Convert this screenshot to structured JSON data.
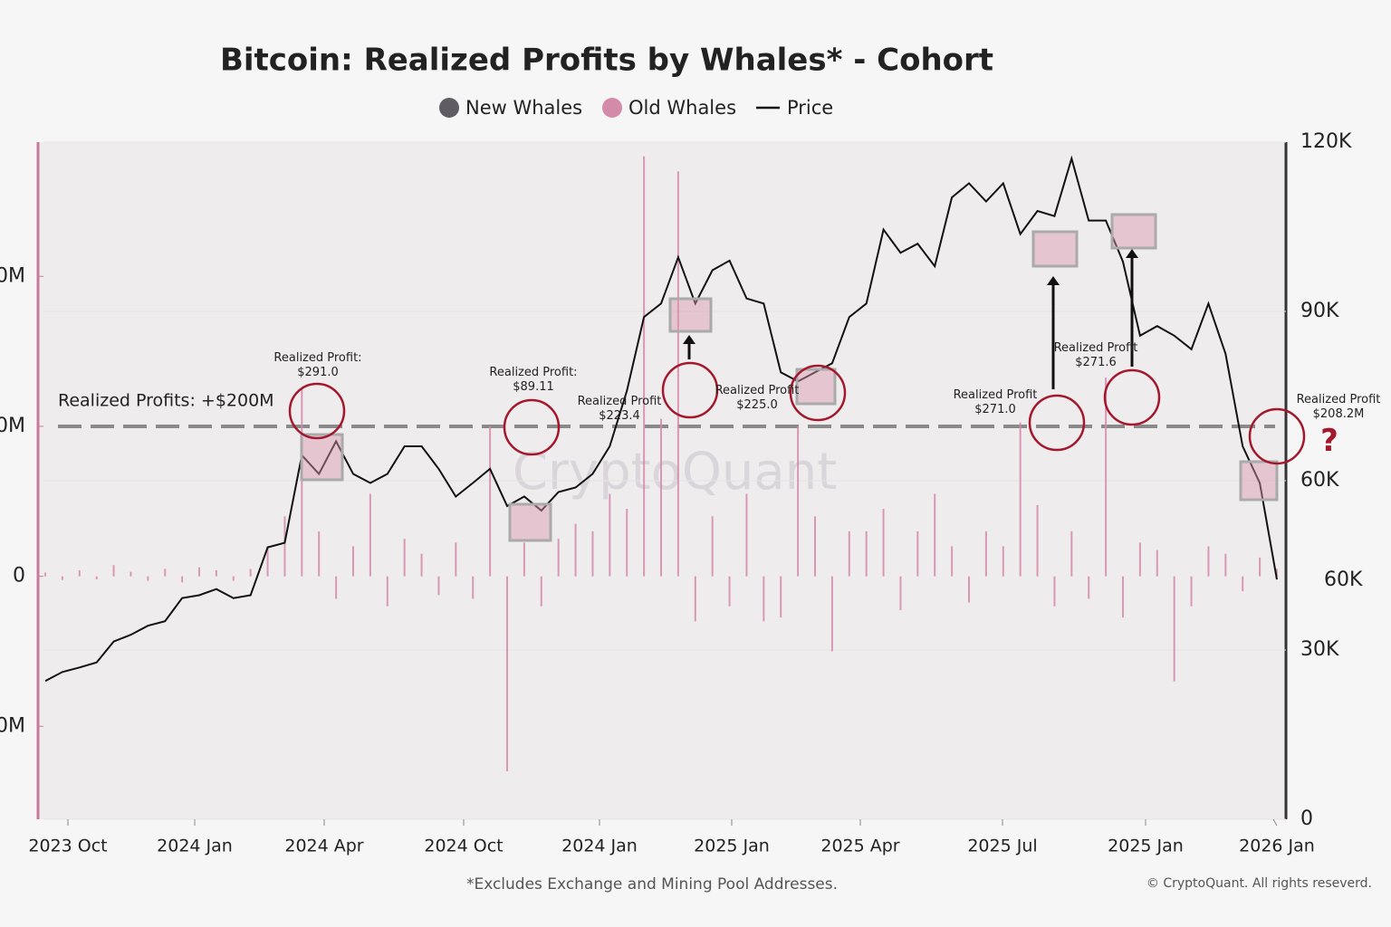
{
  "chart_data": {
    "type": "bar-line",
    "title": "Bitcoin: Realized Profits by Whales* - Cohort",
    "footnote": "*Excludes Exchange and Mining Pool Addresses.",
    "copyright": "© CryptoQuant. All rights reseverd.",
    "watermark": "CryptoQuant",
    "x_labels": [
      "2023 Oct",
      "2024 Jan",
      "2024 Apr",
      "2024 Oct",
      "2024 Jan",
      "2025 Jan",
      "2025 Apr",
      "2025 Jul",
      "2025 Jan",
      "2026 Jan"
    ],
    "ylim": [
      -324,
      579
    ],
    "yticks": [
      {
        "value": 400,
        "label": "0M"
      },
      {
        "value": 200,
        "label": "0M"
      },
      0,
      {
        "value": -200,
        "label": "0M"
      }
    ],
    "y2lim": [
      0,
      120000
    ],
    "y2ticks": [
      {
        "value": 120000,
        "label": "120K"
      },
      {
        "value": 90000,
        "label": "90K"
      },
      {
        "value": 60000,
        "label": "60K"
      },
      {
        "value": 30000,
        "label": "30K"
      },
      0
    ],
    "threshold": {
      "value": 200,
      "label": "Realized Profits: +$200M"
    },
    "series": [
      {
        "name": "New Whales",
        "color": "#5f5d63"
      },
      {
        "name": "Old Whales",
        "color": "#d48aa9",
        "values": [
          5,
          -5,
          8,
          -4,
          15,
          6,
          -6,
          10,
          -8,
          12,
          8,
          -6,
          10,
          40,
          80,
          250,
          60,
          -30,
          40,
          110,
          -40,
          50,
          30,
          -25,
          45,
          -30,
          200,
          -260,
          45,
          -40,
          50,
          70,
          60,
          110,
          90,
          560,
          210,
          540,
          -60,
          80,
          -40,
          110,
          -60,
          -55,
          200,
          80,
          -100,
          60,
          60,
          90,
          -45,
          60,
          110,
          40,
          -35,
          60,
          40,
          205,
          95,
          -40,
          60,
          -30,
          265,
          -55,
          45,
          35,
          -140,
          -40,
          40,
          30,
          -20,
          25,
          10
        ]
      },
      {
        "name": "Price",
        "color": "#111111",
        "axis": "y2",
        "values": [
          24500,
          26100,
          26900,
          27800,
          31500,
          32700,
          34300,
          35100,
          39200,
          39700,
          40800,
          39200,
          39700,
          48200,
          49000,
          64500,
          61200,
          67000,
          61200,
          59600,
          61200,
          66100,
          66100,
          62100,
          57200,
          59600,
          62100,
          55500,
          57200,
          54700,
          58000,
          58800,
          61200,
          66100,
          75900,
          89000,
          91400,
          99600,
          91400,
          97300,
          99000,
          92300,
          91400,
          79200,
          77600,
          79200,
          80800,
          89000,
          91400,
          104500,
          100400,
          102000,
          98000,
          110200,
          112700,
          109500,
          112700,
          103700,
          107800,
          106900,
          117100,
          106100,
          106100,
          98800,
          85700,
          87400,
          85700,
          83300,
          91400,
          82500,
          66100,
          59600,
          42500
        ]
      }
    ],
    "annotations": [
      {
        "lines": [
          "Realized Profit:",
          "$291.0"
        ]
      },
      {
        "lines": [
          "Realized Profit:",
          "$89.11"
        ]
      },
      {
        "lines": [
          "Realized Profit",
          "$223.4"
        ]
      },
      {
        "lines": [
          "Realized Profit",
          "$225.0"
        ]
      },
      {
        "lines": [
          "Realized Profit",
          "$271.0"
        ]
      },
      {
        "lines": [
          "Realized Profit",
          "$271.6"
        ]
      },
      {
        "lines": [
          "Realized Profit",
          "$208.2M"
        ]
      },
      {
        "lines": [
          "?"
        ]
      },
      {
        "lines": [
          "60K"
        ]
      }
    ]
  }
}
